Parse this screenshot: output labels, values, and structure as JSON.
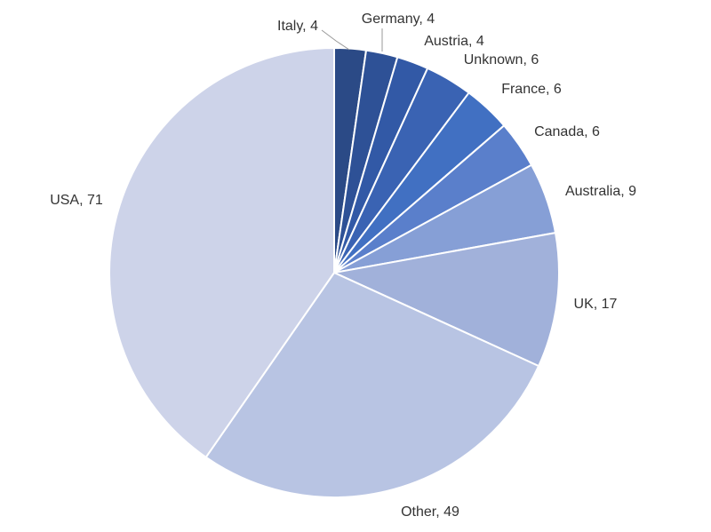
{
  "chart_data": {
    "type": "pie",
    "labels": [
      "Italy, 4",
      "Germany, 4",
      "Austria, 4",
      "Unknown, 6",
      "France, 6",
      "Canada, 6",
      "Australia, 9",
      "UK, 17",
      "Other, 49",
      "USA, 71"
    ],
    "values": [
      4,
      4,
      4,
      6,
      6,
      6,
      9,
      17,
      49,
      71
    ],
    "colors": [
      "#2b4a86",
      "#2e5196",
      "#3259a6",
      "#3a63b3",
      "#4170c2",
      "#5a7fcb",
      "#869fd6",
      "#a1b1da",
      "#b8c4e3",
      "#cdd3e9"
    ]
  }
}
